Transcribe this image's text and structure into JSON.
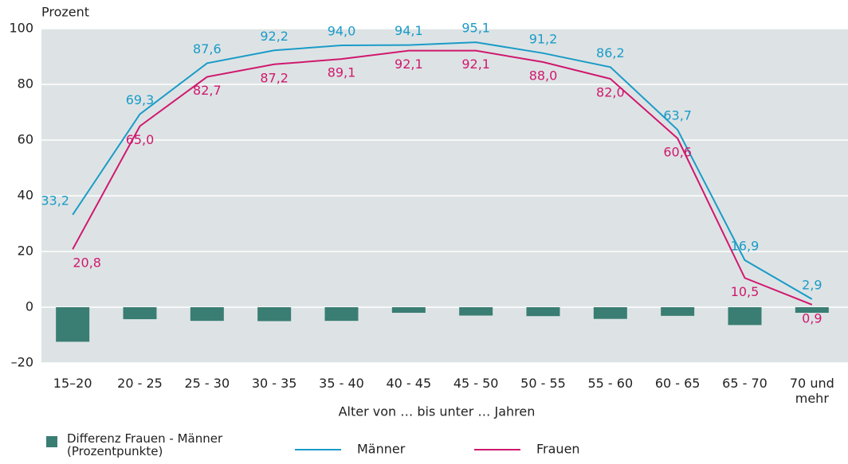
{
  "chart_data": {
    "type": "line",
    "y_label": "Prozent",
    "x_label": "Alter von … bis unter … Jahren",
    "categories": [
      "15–20",
      "20 - 25",
      "25 - 30",
      "30 - 35",
      "35 - 40",
      "40 - 45",
      "45 - 50",
      "50 - 55",
      "55 - 60",
      "60 - 65",
      "65 - 70",
      "70 und mehr"
    ],
    "bars": {
      "name": "Differenz Frauen - Männer (Prozentpunkte)",
      "color": "#3a7d73",
      "values": [
        -12.4,
        -4.3,
        -4.9,
        -5.0,
        -4.9,
        -2.0,
        -3.0,
        -3.2,
        -4.2,
        -3.1,
        -6.4,
        -2.0
      ]
    },
    "series": [
      {
        "name": "Männer",
        "color": "#1a9bc7",
        "values": [
          33.2,
          69.3,
          87.6,
          92.2,
          94.0,
          94.1,
          95.1,
          91.2,
          86.2,
          63.7,
          16.9,
          2.9
        ],
        "value_labels": [
          "33,2",
          "69,3",
          "87,6",
          "92,2",
          "94,0",
          "94,1",
          "95,1",
          "91,2",
          "86,2",
          "63,7",
          "16,9",
          "2,9"
        ]
      },
      {
        "name": "Frauen",
        "color": "#d0186e",
        "values": [
          20.8,
          65.0,
          82.7,
          87.2,
          89.1,
          92.1,
          92.1,
          88.0,
          82.0,
          60.6,
          10.5,
          0.9
        ],
        "value_labels": [
          "20,8",
          "65,0",
          "82,7",
          "87,2",
          "89,1",
          "92,1",
          "92,1",
          "88,0",
          "82,0",
          "60,6",
          "10,5",
          "0,9"
        ]
      }
    ],
    "ylim": [
      -20,
      100
    ],
    "yticks": [
      {
        "value": -20,
        "label": "–20"
      },
      0,
      20,
      40,
      60,
      80,
      100
    ],
    "grid": true
  }
}
